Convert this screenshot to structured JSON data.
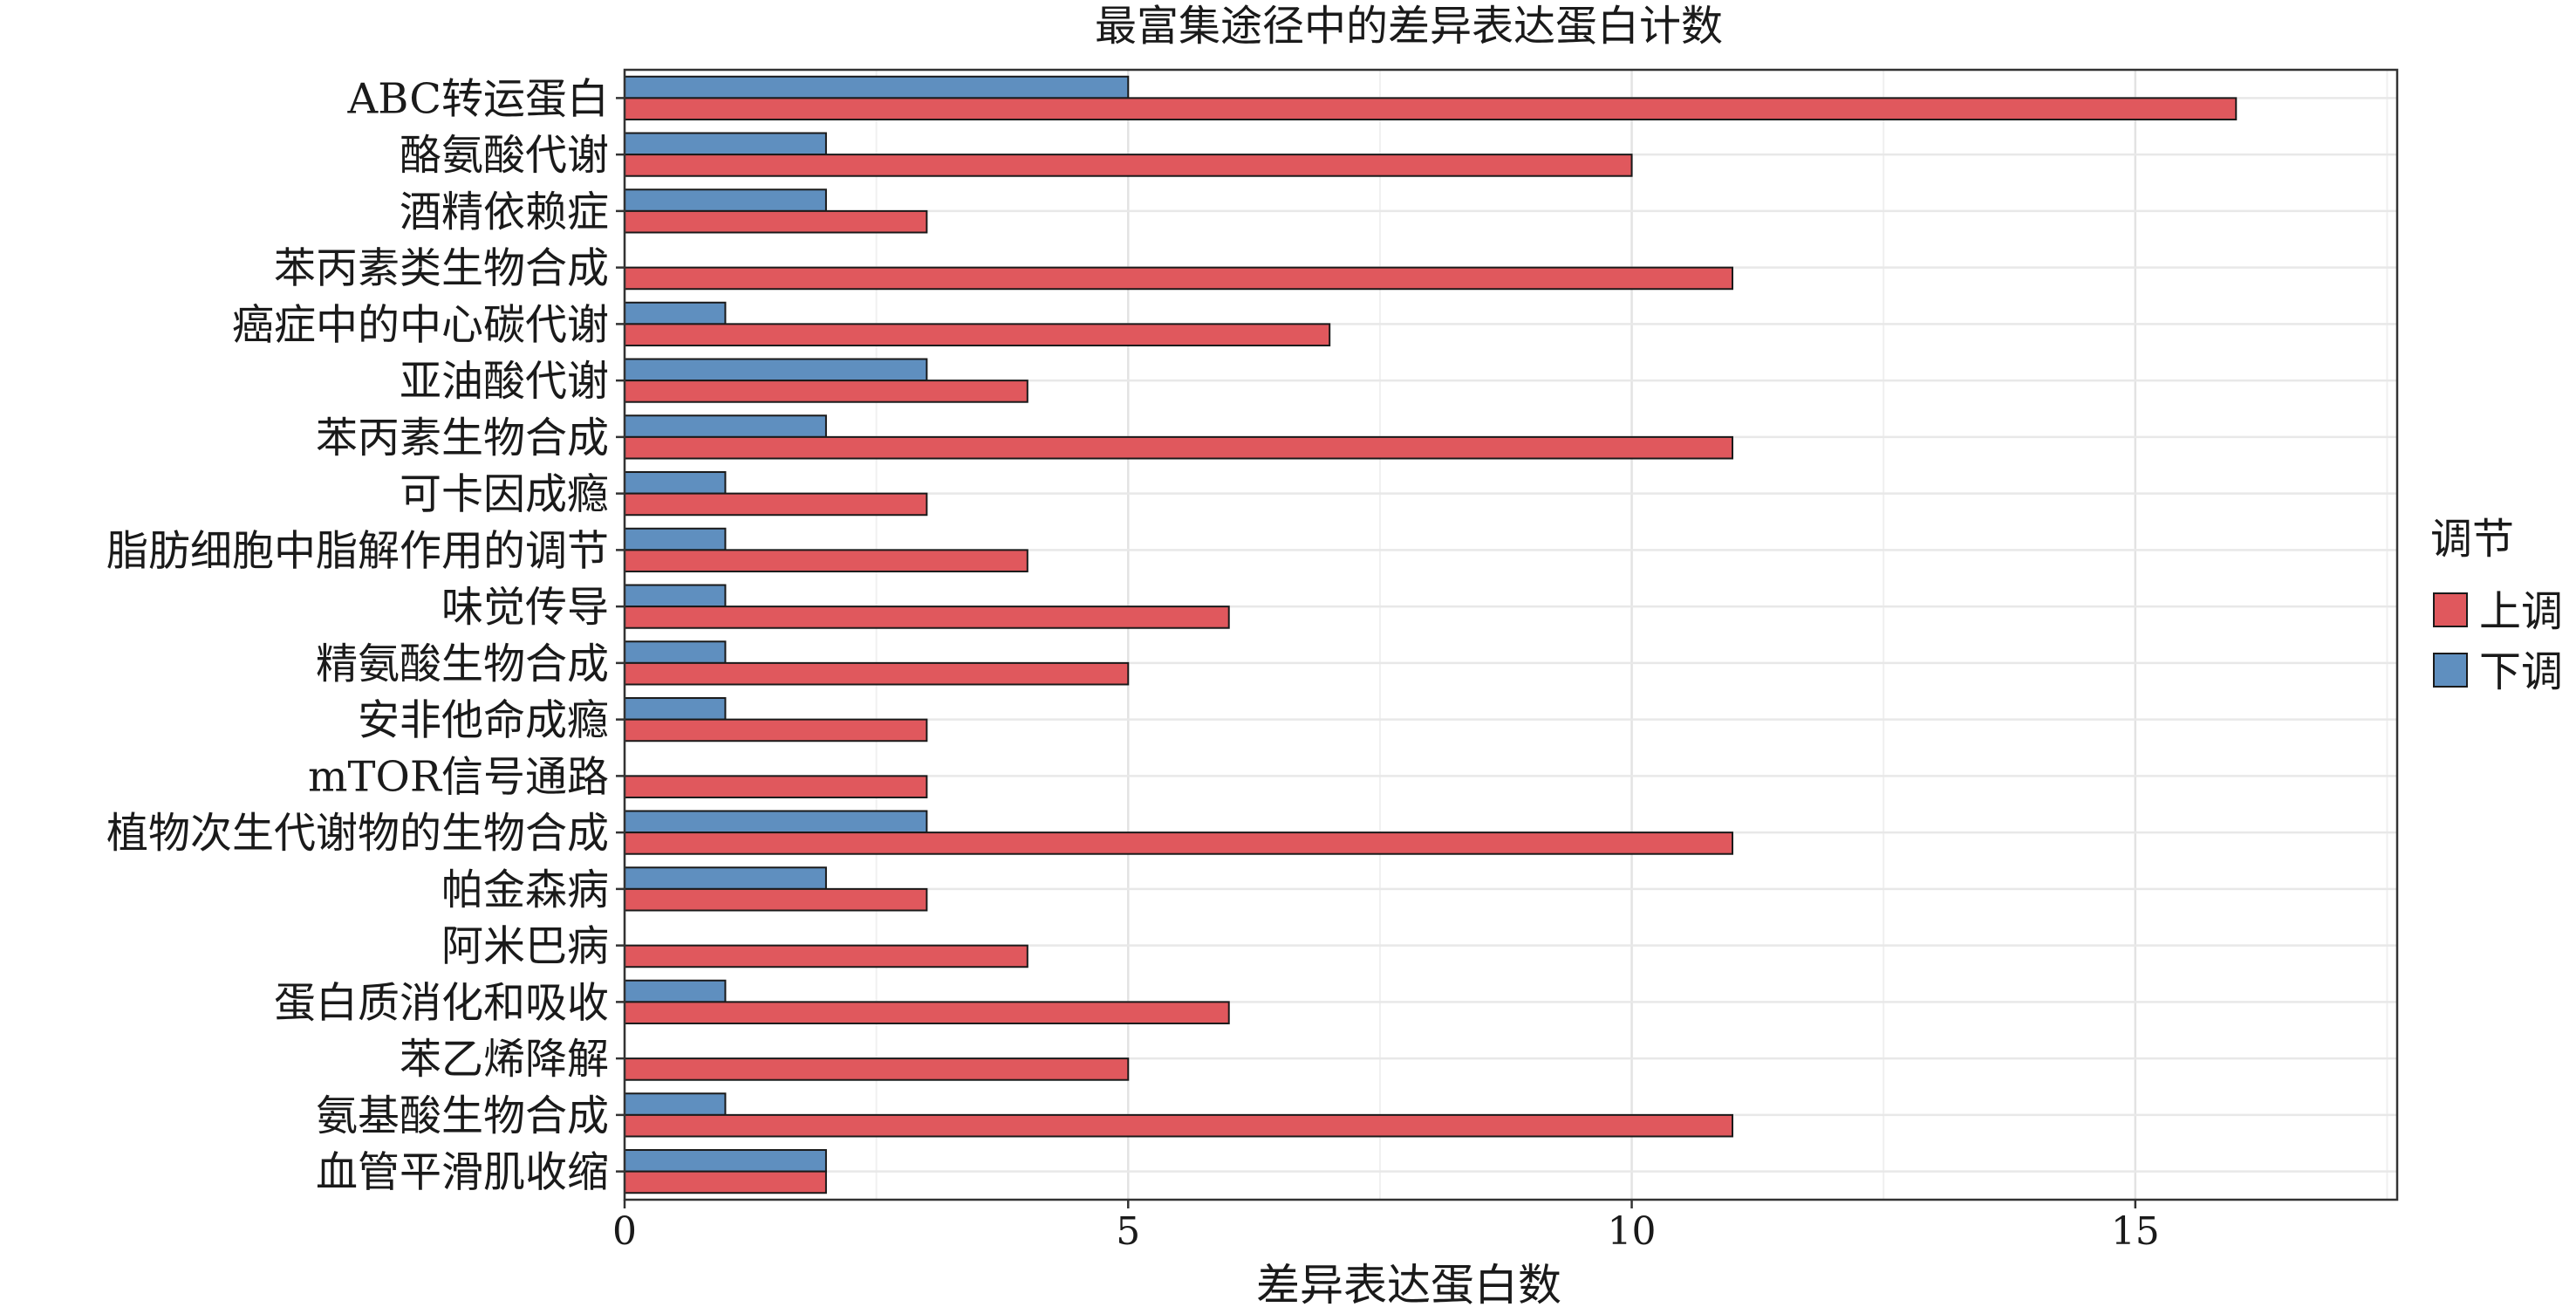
{
  "chart_data": {
    "type": "bar",
    "orientation": "horizontal",
    "title": "最富集途径中的差异表达蛋白计数",
    "xlabel": "差异表达蛋白数",
    "ylabel": "",
    "xlim": [
      0,
      17.6
    ],
    "xticks": [
      0,
      5,
      10,
      15
    ],
    "grid": true,
    "legend": {
      "title": "调节",
      "placement": "right"
    },
    "categories": [
      "ABC转运蛋白",
      "酪氨酸代谢",
      "酒精依赖症",
      "苯丙素类生物合成",
      "癌症中的中心碳代谢",
      "亚油酸代谢",
      "苯丙素生物合成",
      "可卡因成瘾",
      "脂肪细胞中脂解作用的调节",
      "味觉传导",
      "精氨酸生物合成",
      "安非他命成瘾",
      "mTOR信号通路",
      "植物次生代谢物的生物合成",
      "帕金森病",
      "阿米巴病",
      "蛋白质消化和吸收",
      "苯乙烯降解",
      "氨基酸生物合成",
      "血管平滑肌收缩"
    ],
    "series": [
      {
        "name": "上调",
        "color": "#e0585d",
        "values": [
          16,
          10,
          3,
          11,
          7,
          4,
          11,
          3,
          4,
          6,
          5,
          3,
          3,
          11,
          3,
          4,
          6,
          5,
          11,
          2
        ]
      },
      {
        "name": "下调",
        "color": "#5f8fbf",
        "values": [
          5,
          2,
          2,
          0,
          1,
          3,
          2,
          1,
          1,
          1,
          1,
          1,
          0,
          3,
          2,
          0,
          1,
          0,
          1,
          2
        ]
      }
    ]
  }
}
